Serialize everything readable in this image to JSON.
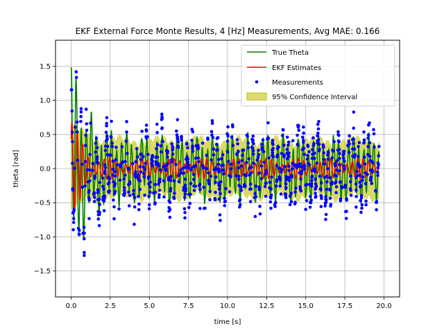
{
  "chart_data": {
    "type": "line",
    "title": "EKF External Force Monte Results, 4 [Hz] Measurements, Avg MAE: 0.166",
    "xlabel": "time [s]",
    "ylabel": "theta [rad]",
    "xlim": [
      -1.0,
      21.0
    ],
    "ylim": [
      -1.88,
      1.88
    ],
    "x_ticks": [
      0.0,
      2.5,
      5.0,
      7.5,
      10.0,
      12.5,
      15.0,
      17.5,
      20.0
    ],
    "x_tick_labels": [
      "0.0",
      "2.5",
      "5.0",
      "7.5",
      "10.0",
      "12.5",
      "15.0",
      "17.5",
      "20.0"
    ],
    "y_ticks": [
      -1.5,
      -1.0,
      -0.5,
      0.0,
      0.5,
      1.0,
      1.5
    ],
    "y_tick_labels": [
      "−1.5",
      "−1.0",
      "−0.5",
      "0.0",
      "0.5",
      "1.0",
      "1.5"
    ],
    "grid": true,
    "legend_position": "top-right",
    "series": [
      {
        "name": "True Theta",
        "kind": "line",
        "color": "#008000"
      },
      {
        "name": "EKF Estimates",
        "kind": "line",
        "color": "#ff0000"
      },
      {
        "name": "Measurements",
        "kind": "scatter",
        "color": "#0000ff"
      },
      {
        "name": "95% Confidence Interval",
        "kind": "band",
        "color": "#bfbf00"
      }
    ],
    "time_span": [
      0,
      19.7
    ],
    "sample_rate_hz": 4,
    "initial_amplitude": 1.6,
    "steady_amplitude": 0.45,
    "confidence_halfwidth": 0.35,
    "estimate_amplitude": 0.15
  }
}
